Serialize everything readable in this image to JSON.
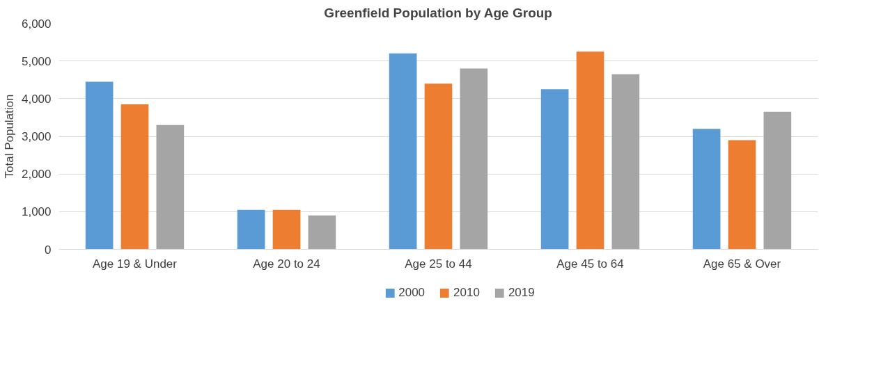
{
  "chart_data": {
    "type": "bar",
    "title": "Greenfield Population by Age Group",
    "ylabel": "Total Population",
    "categories": [
      "Age 19 & Under",
      "Age 20 to 24",
      "Age 25 to 44",
      "Age 45 to 64",
      "Age 65 & Over"
    ],
    "series": [
      {
        "name": "2000",
        "color": "#5b9bd5",
        "values": [
          4450,
          1050,
          5200,
          4250,
          3200
        ]
      },
      {
        "name": "2010",
        "color": "#ed7d31",
        "values": [
          3850,
          1050,
          4400,
          5250,
          2900
        ]
      },
      {
        "name": "2019",
        "color": "#a5a5a5",
        "values": [
          3300,
          900,
          4800,
          4650,
          3650
        ]
      }
    ],
    "ylim": [
      0,
      6000
    ],
    "yticks": [
      {
        "value": 0,
        "label": "0"
      },
      {
        "value": 1000,
        "label": "1,000"
      },
      {
        "value": 2000,
        "label": "2,000"
      },
      {
        "value": 3000,
        "label": "3,000"
      },
      {
        "value": 4000,
        "label": "4,000"
      },
      {
        "value": 5000,
        "label": "5,000"
      },
      {
        "value": 6000,
        "label": "6,000"
      }
    ],
    "grid": "y",
    "legend": "bottom"
  }
}
